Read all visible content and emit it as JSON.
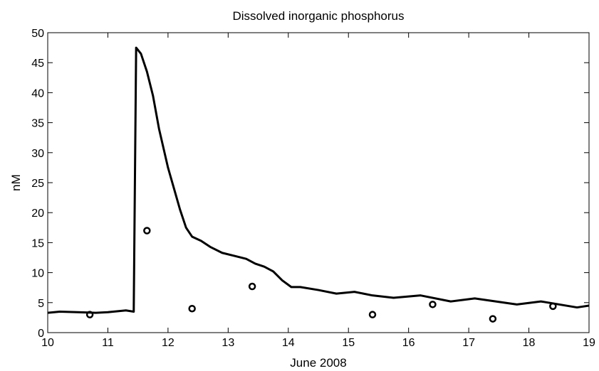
{
  "chart_data": {
    "type": "line",
    "title": "Dissolved inorganic phosphorus",
    "xlabel": "June 2008",
    "ylabel": "nM",
    "xlim": [
      10,
      19
    ],
    "xticks": [
      10,
      11,
      12,
      13,
      14,
      15,
      16,
      17,
      18,
      19
    ],
    "ylim": [
      0,
      50
    ],
    "yticks": [
      0,
      5,
      10,
      15,
      20,
      25,
      30,
      35,
      40,
      45,
      50
    ],
    "series": [
      {
        "type": "line",
        "color": "#000000",
        "x": [
          10,
          10.2,
          10.5,
          10.8,
          11.0,
          11.3,
          11.43,
          11.47,
          11.55,
          11.65,
          11.75,
          11.85,
          12.0,
          12.1,
          12.2,
          12.3,
          12.4,
          12.55,
          12.7,
          12.9,
          13.1,
          13.3,
          13.45,
          13.6,
          13.75,
          13.9,
          14.05,
          14.2,
          14.5,
          14.8,
          15.1,
          15.4,
          15.75,
          16.2,
          16.7,
          17.1,
          17.8,
          18.2,
          18.8,
          19.0
        ],
        "values": [
          3.3,
          3.5,
          3.4,
          3.3,
          3.4,
          3.7,
          3.5,
          47.5,
          46.5,
          43.5,
          39.5,
          34,
          27.5,
          24,
          20.5,
          17.5,
          16,
          15.3,
          14.3,
          13.3,
          12.8,
          12.3,
          11.5,
          11,
          10.2,
          8.7,
          7.6,
          7.6,
          7.1,
          6.5,
          6.8,
          6.2,
          5.8,
          6.2,
          5.2,
          5.7,
          4.7,
          5.2,
          4.2,
          4.5
        ]
      },
      {
        "type": "scatter",
        "color": "#000000",
        "x": [
          10.7,
          11.65,
          12.4,
          13.4,
          15.4,
          16.4,
          17.4,
          18.4
        ],
        "values": [
          3,
          17,
          4,
          7.7,
          3,
          4.7,
          2.3,
          4.4
        ]
      }
    ]
  }
}
